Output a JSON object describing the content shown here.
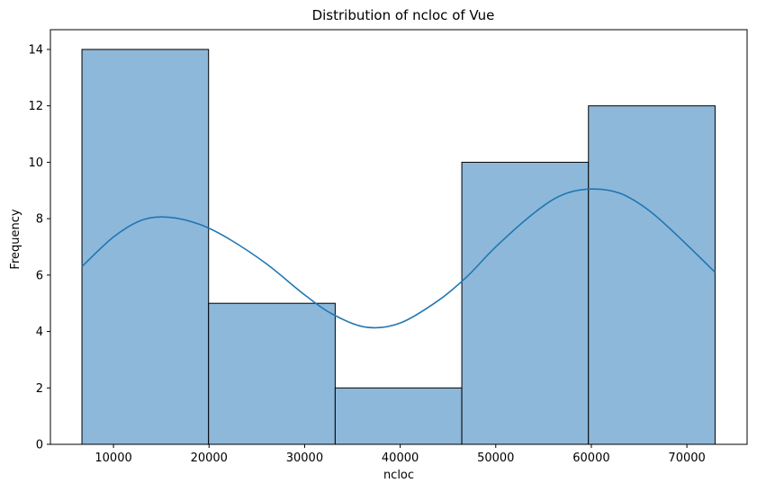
{
  "chart_data": {
    "type": "bar",
    "subtype": "histogram-with-kde",
    "title": "Distribution of ncloc of Vue",
    "xlabel": "ncloc",
    "ylabel": "Frequency",
    "xlim": [
      3400,
      76300
    ],
    "ylim": [
      0,
      14.7
    ],
    "xticks": [
      10000,
      20000,
      30000,
      40000,
      50000,
      60000,
      70000
    ],
    "yticks": [
      0,
      2,
      4,
      6,
      8,
      10,
      12,
      14
    ],
    "bins": [
      {
        "x0": 6700,
        "x1": 19950,
        "count": 14
      },
      {
        "x0": 19950,
        "x1": 33200,
        "count": 5
      },
      {
        "x0": 33200,
        "x1": 46450,
        "count": 2
      },
      {
        "x0": 46450,
        "x1": 59700,
        "count": 10
      },
      {
        "x0": 59700,
        "x1": 72950,
        "count": 12
      }
    ],
    "kde": {
      "x": [
        6700,
        10000,
        13000,
        15800,
        19000,
        22000,
        26000,
        30000,
        33000,
        36500,
        40000,
        44000,
        47000,
        50000,
        54000,
        57000,
        60000,
        63000,
        66000,
        69000,
        72950
      ],
      "y": [
        6.3,
        7.35,
        7.95,
        8.05,
        7.8,
        7.3,
        6.4,
        5.3,
        4.6,
        4.15,
        4.3,
        5.1,
        5.95,
        7.0,
        8.2,
        8.85,
        9.05,
        8.9,
        8.3,
        7.4,
        6.1
      ]
    },
    "colors": {
      "bar_fill": "#8db8da",
      "bar_edge": "#000000",
      "kde_line": "#1f77b4"
    },
    "grid": false,
    "legend": "none"
  }
}
